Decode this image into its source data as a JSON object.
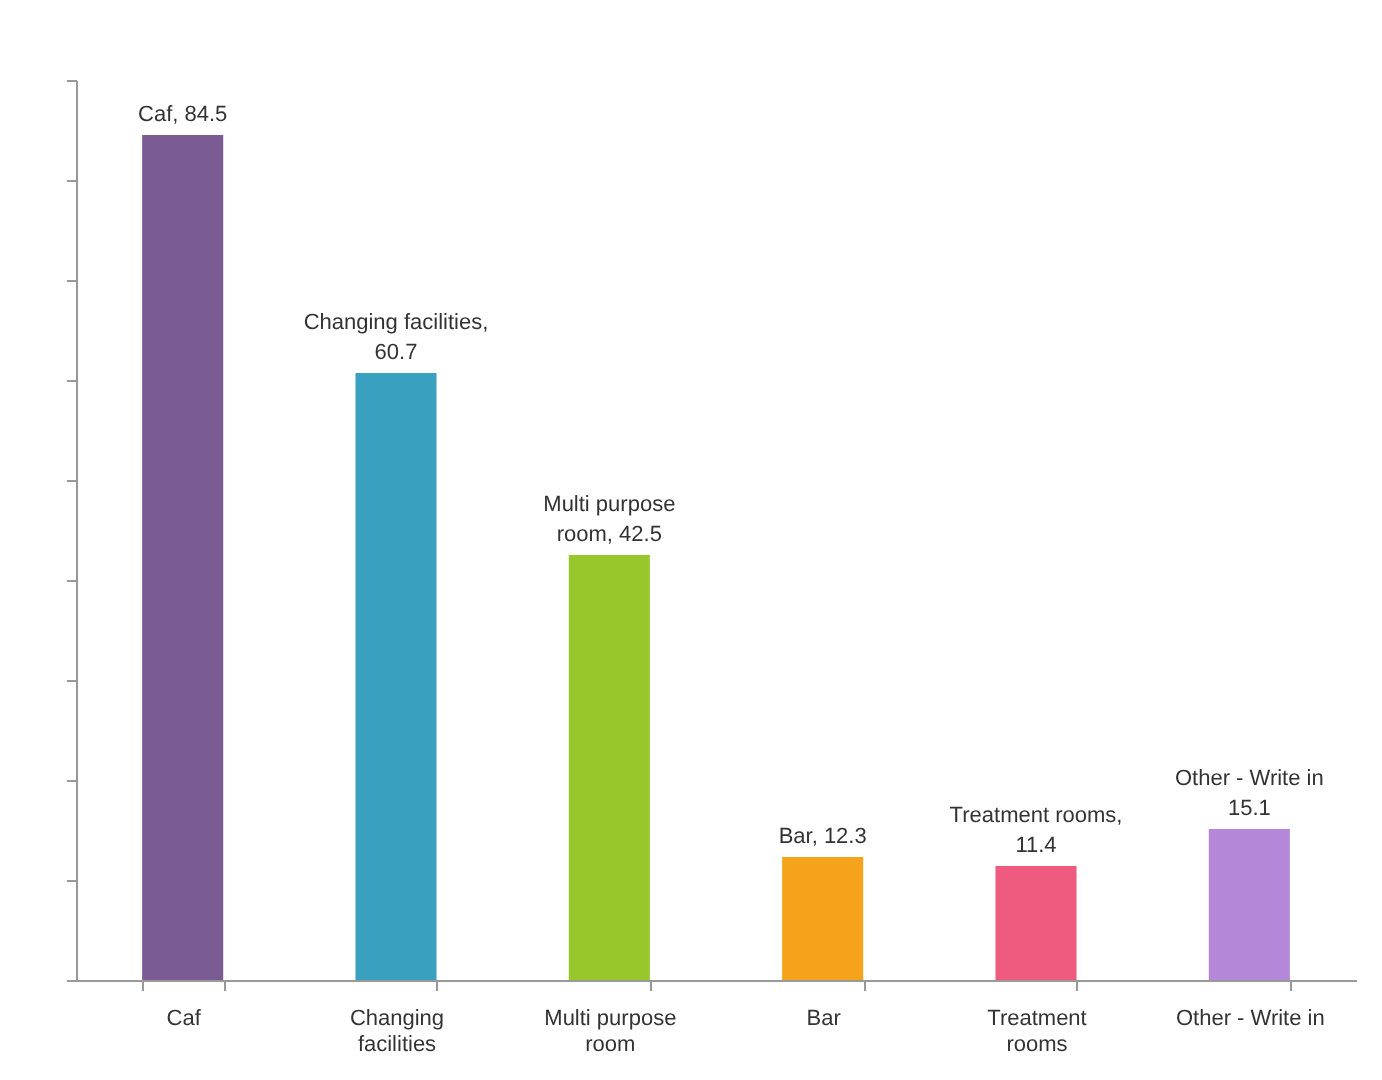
{
  "chart_data": {
    "type": "bar",
    "categories": [
      "Caf",
      "Changing facilities",
      "Multi purpose room",
      "Bar",
      "Treatment rooms",
      "Other - Write in"
    ],
    "values": [
      84.5,
      60.7,
      42.5,
      12.3,
      11.4,
      15.1
    ],
    "colors": [
      "#7b5b93",
      "#3aa0c0",
      "#97c72a",
      "#f5a31a",
      "#ef5b7f",
      "#b587d8"
    ],
    "value_labels": [
      "Caf, 84.5",
      "Changing facilities,\n60.7",
      "Multi purpose\nroom, 42.5",
      "Bar, 12.3",
      "Treatment rooms,\n11.4",
      "Other - Write in\n15.1"
    ],
    "ylim": [
      0,
      90
    ],
    "yticks": [
      {
        "value": 0,
        "label": null
      },
      {
        "value": 10,
        "label": null
      },
      {
        "value": 20,
        "label": null
      },
      {
        "value": 30,
        "label": null
      },
      {
        "value": 40,
        "label": null
      },
      {
        "value": 50,
        "label": null
      },
      {
        "value": 60,
        "label": null
      },
      {
        "value": 70,
        "label": null
      },
      {
        "value": 80,
        "label": null
      },
      {
        "value": 90,
        "label": null
      }
    ],
    "tick_labels": "x"
  }
}
